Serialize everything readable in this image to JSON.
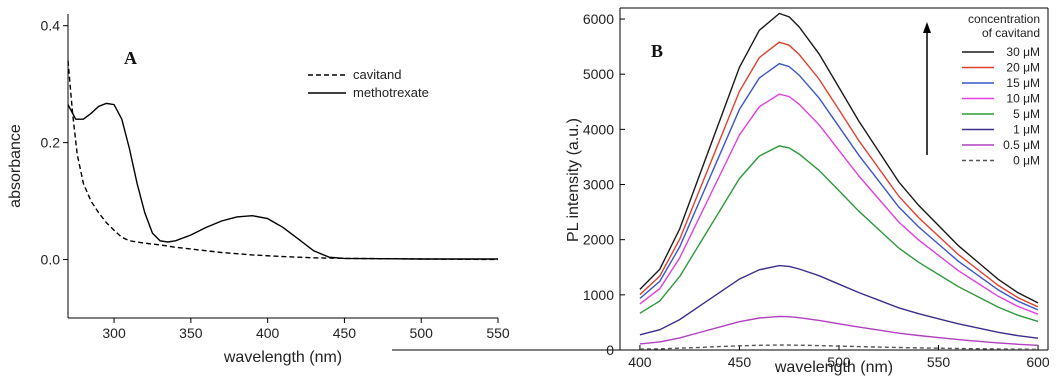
{
  "chart_data": [
    {
      "type": "line",
      "panel_label": "A",
      "xlabel": "wavelength (nm)",
      "ylabel": "absorbance",
      "xlim": [
        270,
        550
      ],
      "ylim": [
        -0.1,
        0.42
      ],
      "xticks": [
        "300",
        "350",
        "400",
        "450",
        "500",
        "550"
      ],
      "xtick_values": [
        300,
        350,
        400,
        450,
        500,
        550
      ],
      "yticks": [
        "0.0",
        "0.2",
        "0.4"
      ],
      "ytick_values": [
        0.0,
        0.2,
        0.4
      ],
      "legend_position": "top-right",
      "series": [
        {
          "name": "cavitand",
          "style": "dashed",
          "color": "#000000",
          "x": [
            270,
            273,
            276,
            280,
            285,
            290,
            295,
            300,
            305,
            310,
            320,
            330,
            340,
            350,
            370,
            390,
            410,
            430,
            450,
            500,
            550
          ],
          "y": [
            0.34,
            0.25,
            0.18,
            0.13,
            0.1,
            0.08,
            0.063,
            0.05,
            0.038,
            0.032,
            0.028,
            0.025,
            0.021,
            0.018,
            0.012,
            0.008,
            0.005,
            0.003,
            0.002,
            0.001,
            0.0
          ]
        },
        {
          "name": "methotrexate",
          "style": "solid",
          "color": "#000000",
          "x": [
            270,
            272,
            275,
            280,
            285,
            290,
            295,
            300,
            305,
            310,
            315,
            320,
            325,
            330,
            335,
            340,
            350,
            360,
            370,
            380,
            390,
            400,
            410,
            420,
            430,
            440,
            450,
            500,
            550
          ],
          "y": [
            0.265,
            0.255,
            0.24,
            0.24,
            0.25,
            0.262,
            0.267,
            0.265,
            0.24,
            0.19,
            0.13,
            0.08,
            0.045,
            0.032,
            0.03,
            0.032,
            0.042,
            0.055,
            0.066,
            0.073,
            0.075,
            0.07,
            0.055,
            0.035,
            0.015,
            0.004,
            0.002,
            0.001,
            0.001
          ]
        }
      ]
    },
    {
      "type": "line",
      "panel_label": "B",
      "xlabel": "wavelength (nm)",
      "ylabel": "PL intensity (a.u.)",
      "xlim": [
        390,
        605
      ],
      "ylim": [
        0,
        6200
      ],
      "xticks": [
        "400",
        "450",
        "500",
        "550",
        "600"
      ],
      "xtick_values": [
        400,
        450,
        500,
        550,
        600
      ],
      "yticks": [
        "0",
        "1000",
        "2000",
        "3000",
        "4000",
        "5000",
        "6000"
      ],
      "ytick_values": [
        0,
        1000,
        2000,
        3000,
        4000,
        5000,
        6000
      ],
      "legend_title": [
        "concentration",
        "of cavitand"
      ],
      "legend_position": "top-right",
      "x": [
        400,
        410,
        420,
        430,
        440,
        450,
        460,
        470,
        475,
        480,
        490,
        500,
        510,
        520,
        530,
        540,
        550,
        560,
        570,
        580,
        590,
        600
      ],
      "shape": [
        0.18,
        0.24,
        0.36,
        0.52,
        0.68,
        0.84,
        0.95,
        1.0,
        0.99,
        0.96,
        0.88,
        0.78,
        0.68,
        0.59,
        0.5,
        0.43,
        0.37,
        0.31,
        0.26,
        0.21,
        0.17,
        0.14
      ],
      "series": [
        {
          "name": "30 μM",
          "peak": 6100,
          "color": "#1a1a1a",
          "style": "solid"
        },
        {
          "name": "20 μM",
          "peak": 5580,
          "color": "#e0402e",
          "style": "solid"
        },
        {
          "name": "15 μM",
          "peak": 5190,
          "color": "#3a55c8",
          "style": "solid"
        },
        {
          "name": "10 μM",
          "peak": 4640,
          "color": "#e040e0",
          "style": "solid"
        },
        {
          "name": "5 μM",
          "peak": 3700,
          "color": "#2e9a3a",
          "style": "solid"
        },
        {
          "name": "1 μM",
          "peak": 1530,
          "color": "#3a2f8a",
          "style": "solid"
        },
        {
          "name": "0.5 μM",
          "peak": 610,
          "color": "#b040c0",
          "style": "solid"
        },
        {
          "name": "0 μM",
          "peak": 90,
          "color": "#555555",
          "style": "dashed"
        }
      ]
    }
  ]
}
